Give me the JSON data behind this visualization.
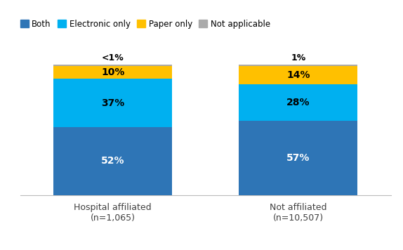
{
  "categories": [
    "Hospital affiliated\n(n=1,065)",
    "Not affiliated\n(n=10,507)"
  ],
  "series": {
    "Both": [
      52,
      57
    ],
    "Electronic only": [
      37,
      28
    ],
    "Paper only": [
      10,
      14
    ],
    "Not applicable": [
      1,
      1
    ]
  },
  "colors": {
    "Both": "#2E75B6",
    "Electronic only": "#00B0F0",
    "Paper only": "#FFC000",
    "Not applicable": "#AAAAAA"
  },
  "labels": {
    "Both": [
      "52%",
      "57%"
    ],
    "Electronic only": [
      "37%",
      "28%"
    ],
    "Paper only": [
      "10%",
      "14%"
    ],
    "Not applicable": [
      "<1%",
      "1%"
    ]
  },
  "label_colors": {
    "Both": "white",
    "Electronic only": "black",
    "Paper only": "black",
    "Not applicable": "black"
  },
  "legend_order": [
    "Both",
    "Electronic only",
    "Paper only",
    "Not applicable"
  ],
  "bar_width": 0.32,
  "figsize": [
    5.74,
    3.56
  ],
  "dpi": 100,
  "ylim": [
    0,
    115
  ],
  "font_size": 9,
  "label_font_size": 10
}
